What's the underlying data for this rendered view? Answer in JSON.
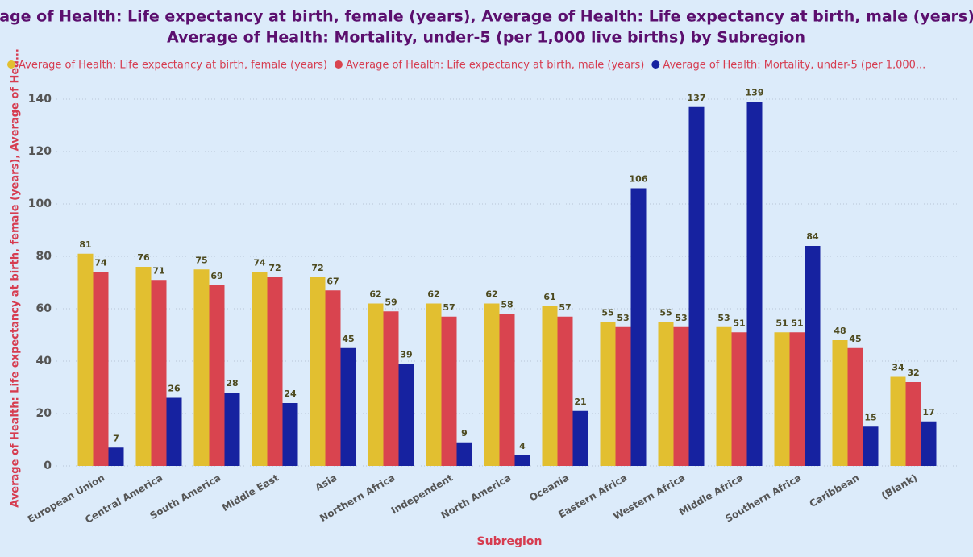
{
  "chart_data": {
    "type": "bar",
    "title_lines": [
      "Average of Health: Life expectancy at birth, female (years), Average of Health: Life expectancy at birth, male (years) and",
      "Average of Health: Mortality, under-5 (per 1,000 live births) by Subregion"
    ],
    "x_label": "Subregion",
    "y_label": "Average of Health: Life expectancy at birth, female (years), Average of Hea...",
    "categories": [
      "European Union",
      "Central America",
      "South America",
      "Middle East",
      "Asia",
      "Northern Africa",
      "Independent",
      "North America",
      "Oceania",
      "Eastern Africa",
      "Western Africa",
      "Middle Africa",
      "Southern Africa",
      "Caribbean",
      "(Blank)"
    ],
    "series": [
      {
        "name": "Average of Health: Life expectancy at birth, female (years)",
        "color": "#e2bf30",
        "values": [
          81,
          76,
          75,
          74,
          72,
          62,
          62,
          62,
          61,
          55,
          55,
          53,
          51,
          48,
          34
        ]
      },
      {
        "name": "Average of Health: Life expectancy at birth, male (years)",
        "color": "#d9444f",
        "values": [
          74,
          71,
          69,
          72,
          67,
          59,
          57,
          58,
          57,
          53,
          53,
          51,
          51,
          45,
          32
        ]
      },
      {
        "name": "Average of Health: Mortality, under-5 (per 1,000...",
        "color": "#1622a0",
        "values": [
          7,
          26,
          28,
          24,
          45,
          39,
          9,
          4,
          21,
          106,
          137,
          139,
          84,
          15,
          17
        ]
      }
    ],
    "ylim": [
      0,
      140
    ],
    "yticks": [
      0,
      20,
      40,
      60,
      80,
      100,
      120,
      140
    ],
    "grid": true
  }
}
